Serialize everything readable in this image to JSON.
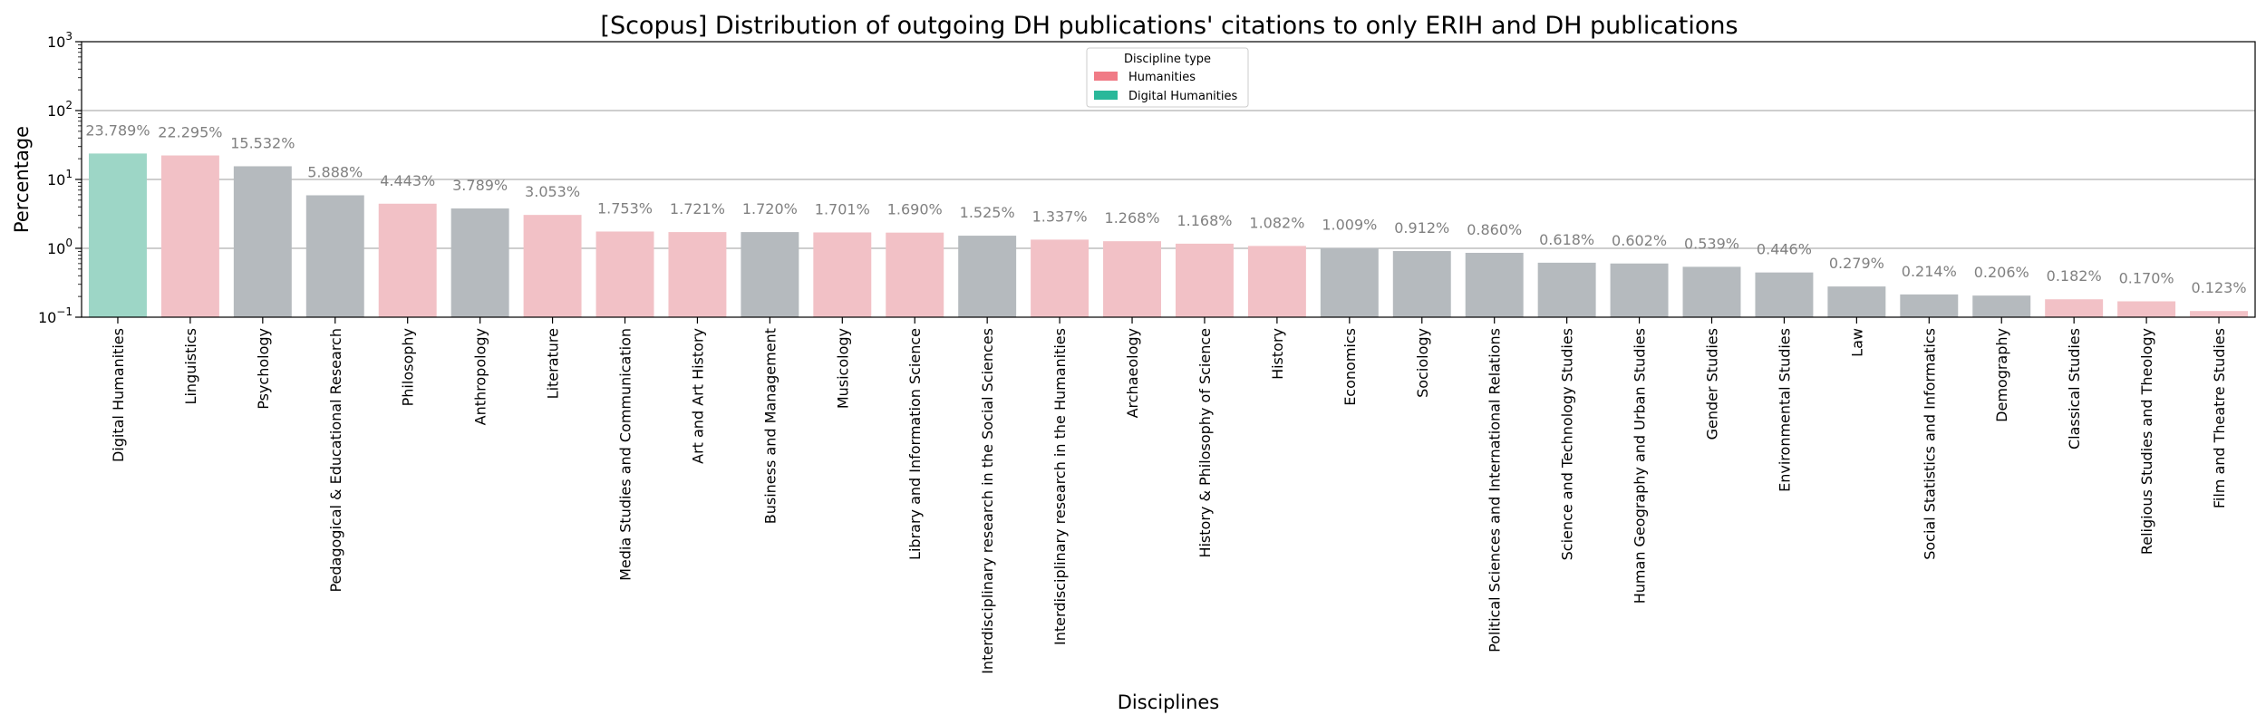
{
  "chart_data": {
    "type": "bar",
    "title": "[Scopus] Distribution of outgoing DH publications' citations to only ERIH and DH publications",
    "xlabel": "Disciplines",
    "ylabel": "Percentage",
    "yscale": "log",
    "ylim": [
      0.1,
      1000
    ],
    "yticks": [
      0.1,
      1,
      10,
      100,
      1000
    ],
    "ytick_labels": [
      {
        "base": "10",
        "exp": "−1"
      },
      {
        "base": "10",
        "exp": "0"
      },
      {
        "base": "10",
        "exp": "1"
      },
      {
        "base": "10",
        "exp": "2"
      },
      {
        "base": "10",
        "exp": "3"
      }
    ],
    "grid": "horizontal",
    "legend": {
      "title": "Discipline type",
      "placement": "top-center",
      "entries": [
        {
          "label": "Humanities",
          "color": "#f07b86"
        },
        {
          "label": "Digital Humanities",
          "color": "#2ab89a"
        }
      ]
    },
    "bar_colors": {
      "Humanities": "#f2c1c6",
      "Digital Humanities": "#9dd6c6",
      "Other": "#b5babe"
    },
    "categories": [
      "Digital Humanities",
      "Linguistics",
      "Psychology",
      "Pedagogical & Educational Research",
      "Philosophy",
      "Anthropology",
      "Literature",
      "Media Studies and Communication",
      "Art and Art History",
      "Business and Management",
      "Musicology",
      "Library and Information Science",
      "Interdisciplinary research in the Social Sciences",
      "Interdisciplinary research in the Humanities",
      "Archaeology",
      "History & Philosophy of Science",
      "History",
      "Economics",
      "Sociology",
      "Political Sciences and International Relations",
      "Science and Technology Studies",
      "Human Geography and Urban Studies",
      "Gender Studies",
      "Environmental Studies",
      "Law",
      "Social Statistics and Informatics",
      "Demography",
      "Classical Studies",
      "Religious Studies and Theology",
      "Film and Theatre Studies"
    ],
    "values": [
      23.789,
      22.295,
      15.532,
      5.888,
      4.443,
      3.789,
      3.053,
      1.753,
      1.721,
      1.72,
      1.701,
      1.69,
      1.525,
      1.337,
      1.268,
      1.168,
      1.082,
      1.009,
      0.912,
      0.86,
      0.618,
      0.602,
      0.539,
      0.446,
      0.279,
      0.214,
      0.206,
      0.182,
      0.17,
      0.123
    ],
    "value_labels": [
      "23.789%",
      "22.295%",
      "15.532%",
      "5.888%",
      "4.443%",
      "3.789%",
      "3.053%",
      "1.753%",
      "1.721%",
      "1.720%",
      "1.701%",
      "1.690%",
      "1.525%",
      "1.337%",
      "1.268%",
      "1.168%",
      "1.082%",
      "1.009%",
      "0.912%",
      "0.860%",
      "0.618%",
      "0.602%",
      "0.539%",
      "0.446%",
      "0.279%",
      "0.214%",
      "0.206%",
      "0.182%",
      "0.170%",
      "0.123%"
    ],
    "types": [
      "Digital Humanities",
      "Humanities",
      "Other",
      "Other",
      "Humanities",
      "Other",
      "Humanities",
      "Humanities",
      "Humanities",
      "Other",
      "Humanities",
      "Humanities",
      "Other",
      "Humanities",
      "Humanities",
      "Humanities",
      "Humanities",
      "Other",
      "Other",
      "Other",
      "Other",
      "Other",
      "Other",
      "Other",
      "Other",
      "Other",
      "Other",
      "Humanities",
      "Humanities",
      "Humanities"
    ]
  }
}
